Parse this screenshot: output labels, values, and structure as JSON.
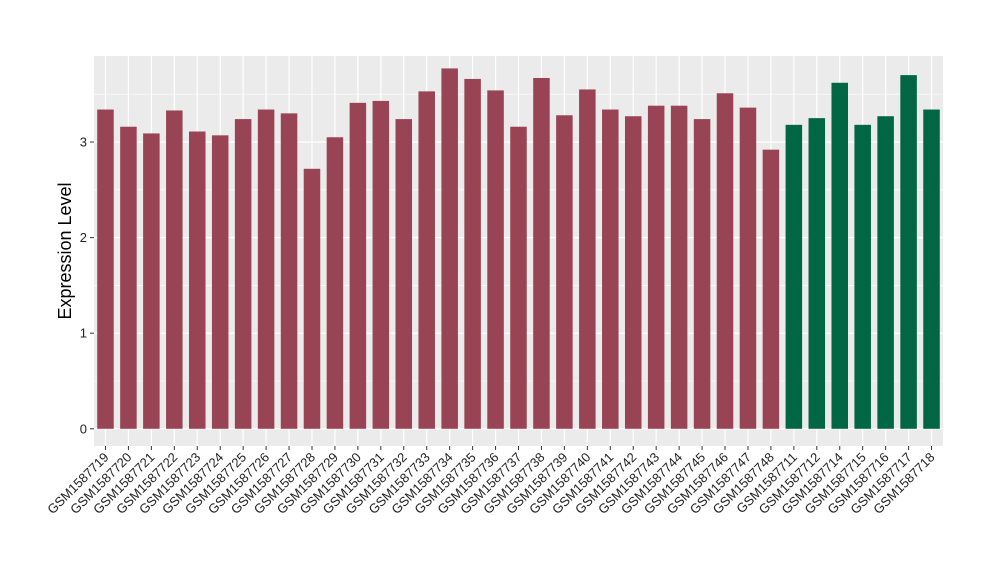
{
  "chart_data": {
    "type": "bar",
    "ylabel": "Expression Level",
    "xlabel": "",
    "ylim": [
      -0.18,
      3.9
    ],
    "yticks": [
      0,
      1,
      2,
      3
    ],
    "grid": true,
    "colors": {
      "group1": "#994455",
      "group2": "#006644",
      "panel": "#ebebeb",
      "grid": "#ffffff"
    },
    "categories": [
      "GSM1587719",
      "GSM1587720",
      "GSM1587721",
      "GSM1587722",
      "GSM1587723",
      "GSM1587724",
      "GSM1587725",
      "GSM1587726",
      "GSM1587727",
      "GSM1587728",
      "GSM1587729",
      "GSM1587730",
      "GSM1587731",
      "GSM1587732",
      "GSM1587733",
      "GSM1587734",
      "GSM1587735",
      "GSM1587736",
      "GSM1587737",
      "GSM1587738",
      "GSM1587739",
      "GSM1587740",
      "GSM1587741",
      "GSM1587742",
      "GSM1587743",
      "GSM1587744",
      "GSM1587745",
      "GSM1587746",
      "GSM1587747",
      "GSM1587748",
      "GSM1587711",
      "GSM1587712",
      "GSM1587714",
      "GSM1587715",
      "GSM1587716",
      "GSM1587717",
      "GSM1587718"
    ],
    "values": [
      3.34,
      3.16,
      3.09,
      3.33,
      3.11,
      3.07,
      3.24,
      3.34,
      3.3,
      2.72,
      3.05,
      3.41,
      3.43,
      3.24,
      3.53,
      3.77,
      3.66,
      3.54,
      3.16,
      3.67,
      3.28,
      3.55,
      3.34,
      3.27,
      3.38,
      3.38,
      3.24,
      3.51,
      3.36,
      2.92,
      3.18,
      3.25,
      3.62,
      3.18,
      3.27,
      3.7,
      3.34
    ],
    "groups": [
      1,
      1,
      1,
      1,
      1,
      1,
      1,
      1,
      1,
      1,
      1,
      1,
      1,
      1,
      1,
      1,
      1,
      1,
      1,
      1,
      1,
      1,
      1,
      1,
      1,
      1,
      1,
      1,
      1,
      1,
      2,
      2,
      2,
      2,
      2,
      2,
      2
    ]
  }
}
